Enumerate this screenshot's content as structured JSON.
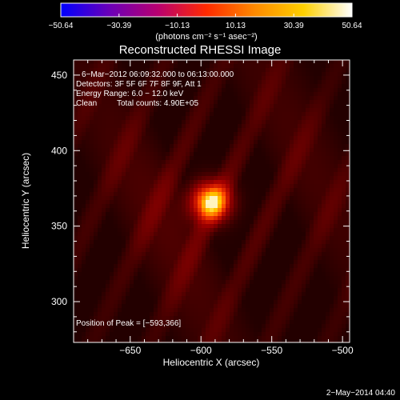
{
  "chart_data": {
    "type": "heatmap",
    "title": "Reconstructed RHESSI Image",
    "xlabel": "Heliocentric X (arcsec)",
    "ylabel": "Heliocentric Y (arcsec)",
    "xlim": [
      -690,
      -495
    ],
    "ylim": [
      273,
      460
    ],
    "x_ticks": [
      -650,
      -600,
      -550,
      -500
    ],
    "x_tick_labels": [
      "−650",
      "−600",
      "−550",
      "−500"
    ],
    "y_ticks": [
      300,
      350,
      400,
      450
    ],
    "y_tick_labels": [
      "300",
      "350",
      "400",
      "450"
    ],
    "colorbar": {
      "min": -50.64,
      "max": 50.64,
      "ticks": [
        -50.64,
        -30.39,
        -10.13,
        10.13,
        30.39,
        50.64
      ],
      "tick_labels": [
        "−50.64",
        "−30.39",
        "−10.13",
        "10.13",
        "30.39",
        "50.64"
      ],
      "unit_label": "(photons cm⁻² s⁻¹ asec⁻²)",
      "colors": [
        "#0000ff",
        "#6a00b8",
        "#b80070",
        "#ff2a00",
        "#ff8a00",
        "#ffd000",
        "#ffffff"
      ]
    },
    "peak": {
      "x": -593,
      "y": 366,
      "sigma_arcsec": 9
    },
    "annotations": {
      "time_range": "6−Mar−2012 06:09:32.000 to 06:13:00.000",
      "detectors": "Detectors: 3F 5F 6F 7F 8F 9F, Att 1",
      "energy": "Energy Range: 6.0 − 12.0 keV",
      "clean": "Clean",
      "counts": "Total counts: 4.90E+05",
      "peak_text": "Position of Peak = [−593,366]"
    },
    "timestamp": "2−May−2014 04:40"
  }
}
